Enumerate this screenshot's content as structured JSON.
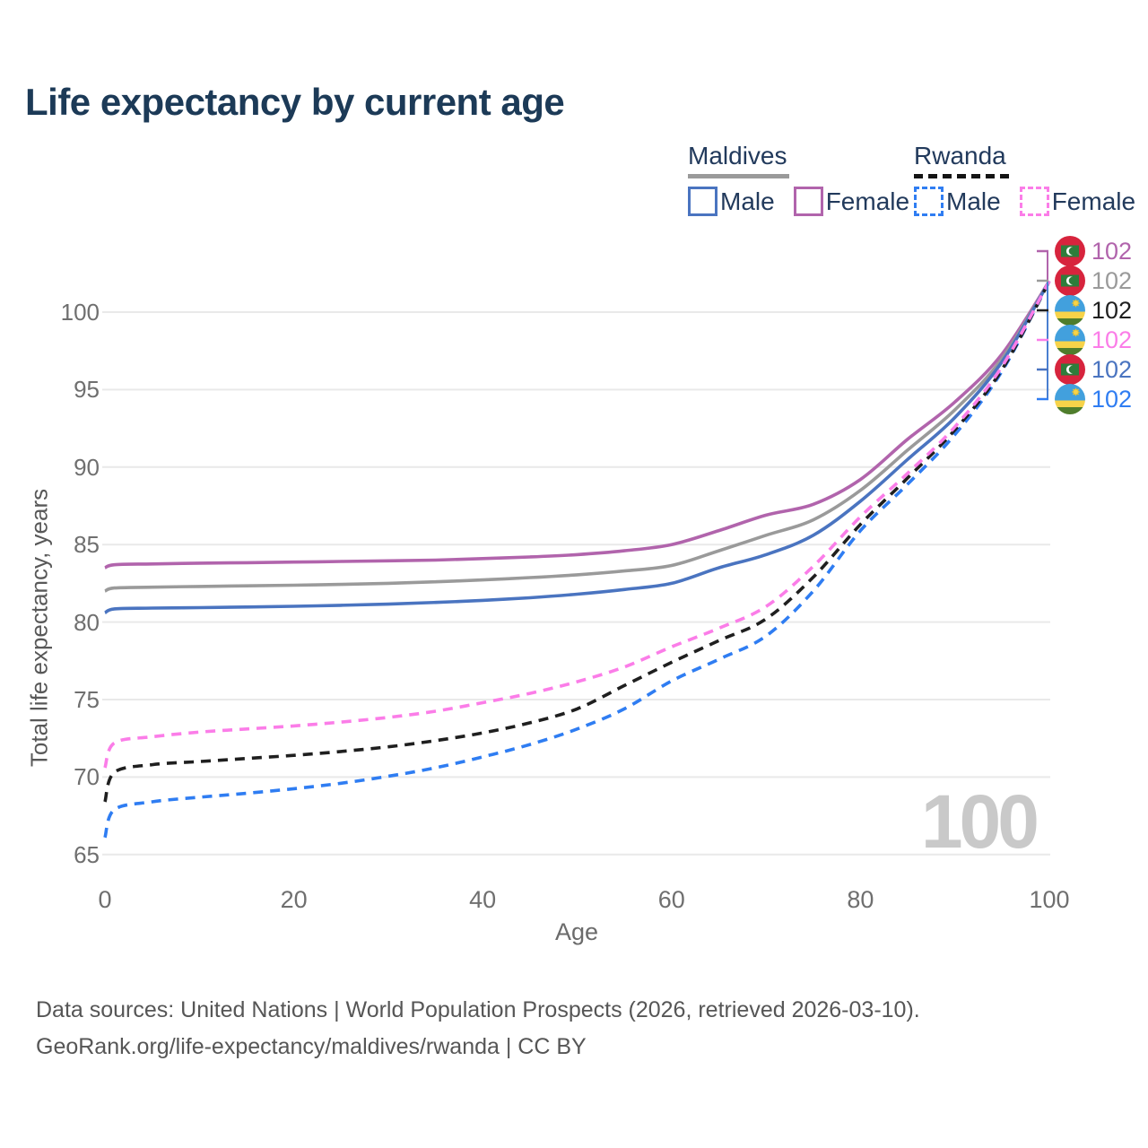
{
  "title": "Life expectancy by current age",
  "watermark": "100",
  "footer": {
    "line1": "Data sources: United Nations | World Population Prospects (2026, retrieved 2026-03-10).",
    "line2": "GeoRank.org/life-expectancy/maldives/rwanda | CC BY"
  },
  "legend": {
    "groups": [
      {
        "label": "Maldives",
        "line_style": "solid",
        "underline_color": "#9a9a9a",
        "items": [
          {
            "label": "Male",
            "color": "#4a74c0",
            "dashed": false
          },
          {
            "label": "Female",
            "color": "#b164ac",
            "dashed": false
          }
        ]
      },
      {
        "label": "Rwanda",
        "line_style": "dashed",
        "underline_color": "#141414",
        "items": [
          {
            "label": "Male",
            "color": "#2f7df2",
            "dashed": true
          },
          {
            "label": "Female",
            "color": "#fb7de8",
            "dashed": true
          }
        ]
      }
    ]
  },
  "end_labels": [
    {
      "country": "Maldives",
      "flag": "maldives-flag-icon",
      "value": "102",
      "color": "#b164ac"
    },
    {
      "country": "Maldives",
      "flag": "maldives-flag-icon",
      "value": "102",
      "color": "#9a9a9a"
    },
    {
      "country": "Rwanda",
      "flag": "rwanda-flag-icon",
      "value": "102",
      "color": "#1f1f1f"
    },
    {
      "country": "Rwanda",
      "flag": "rwanda-flag-icon",
      "value": "102",
      "color": "#fb7de8"
    },
    {
      "country": "Maldives",
      "flag": "maldives-flag-icon",
      "value": "102",
      "color": "#4a74c0"
    },
    {
      "country": "Rwanda",
      "flag": "rwanda-flag-icon",
      "value": "102",
      "color": "#2f7df2"
    }
  ],
  "chart_data": {
    "type": "line",
    "title": "Life expectancy by current age",
    "xlabel": "Age",
    "ylabel": "Total life expectancy, years",
    "xlim": [
      0,
      100
    ],
    "ylim": [
      63.5,
      103.5
    ],
    "x_ticks": [
      0,
      20,
      40,
      60,
      80,
      100
    ],
    "y_ticks": [
      65,
      70,
      75,
      80,
      85,
      90,
      95,
      100
    ],
    "grid": "horizontal",
    "legend_position": "top-right",
    "x": [
      0,
      1,
      5,
      10,
      15,
      20,
      25,
      30,
      35,
      40,
      45,
      50,
      55,
      60,
      65,
      70,
      75,
      80,
      85,
      90,
      95,
      100
    ],
    "series": [
      {
        "name": "Maldives Female",
        "country": "Maldives",
        "sex": "Female",
        "style": "solid",
        "color": "#b164ac",
        "end_label": "102",
        "values": [
          83.5,
          83.7,
          83.75,
          83.8,
          83.83,
          83.87,
          83.91,
          83.95,
          84.0,
          84.1,
          84.2,
          84.35,
          84.6,
          85.0,
          85.9,
          86.9,
          87.6,
          89.2,
          91.8,
          94.2,
          97.3,
          102
        ]
      },
      {
        "name": "Maldives Both sexes",
        "country": "Maldives",
        "sex": "Both",
        "style": "solid",
        "color": "#9a9a9a",
        "end_label": "102",
        "values": [
          82.0,
          82.2,
          82.25,
          82.3,
          82.34,
          82.38,
          82.43,
          82.5,
          82.6,
          82.72,
          82.87,
          83.05,
          83.3,
          83.65,
          84.6,
          85.6,
          86.6,
          88.5,
          91.1,
          93.7,
          97.0,
          102
        ]
      },
      {
        "name": "Maldives Male",
        "country": "Maldives",
        "sex": "Male",
        "style": "solid",
        "color": "#4a74c0",
        "end_label": "102",
        "values": [
          80.6,
          80.85,
          80.9,
          80.93,
          80.97,
          81.02,
          81.08,
          81.16,
          81.27,
          81.4,
          81.57,
          81.8,
          82.1,
          82.5,
          83.5,
          84.35,
          85.6,
          87.8,
          90.5,
          93.2,
          96.8,
          102
        ]
      },
      {
        "name": "Rwanda Male",
        "country": "Rwanda",
        "sex": "Male",
        "style": "dashed",
        "color": "#2f7df2",
        "end_label": "102",
        "values": [
          66.1,
          67.9,
          68.4,
          68.7,
          68.95,
          69.25,
          69.6,
          70.05,
          70.6,
          71.3,
          72.1,
          73.1,
          74.4,
          76.2,
          77.6,
          79.1,
          82.0,
          85.9,
          88.9,
          92.1,
          96.2,
          102
        ]
      },
      {
        "name": "Rwanda Both sexes",
        "country": "Rwanda",
        "sex": "Both",
        "style": "dashed",
        "color": "#1f1f1f",
        "end_label": "102",
        "values": [
          68.4,
          70.3,
          70.8,
          71.0,
          71.2,
          71.4,
          71.65,
          71.95,
          72.35,
          72.85,
          73.5,
          74.4,
          75.9,
          77.4,
          78.8,
          80.2,
          82.9,
          86.3,
          89.3,
          92.4,
          96.3,
          102
        ]
      },
      {
        "name": "Rwanda Female",
        "country": "Rwanda",
        "sex": "Female",
        "style": "dashed",
        "color": "#fb7de8",
        "end_label": "102",
        "values": [
          70.6,
          72.2,
          72.6,
          72.9,
          73.1,
          73.3,
          73.55,
          73.85,
          74.25,
          74.8,
          75.4,
          76.15,
          77.1,
          78.4,
          79.6,
          81.0,
          83.6,
          86.8,
          89.6,
          92.6,
          96.5,
          102
        ]
      }
    ]
  }
}
